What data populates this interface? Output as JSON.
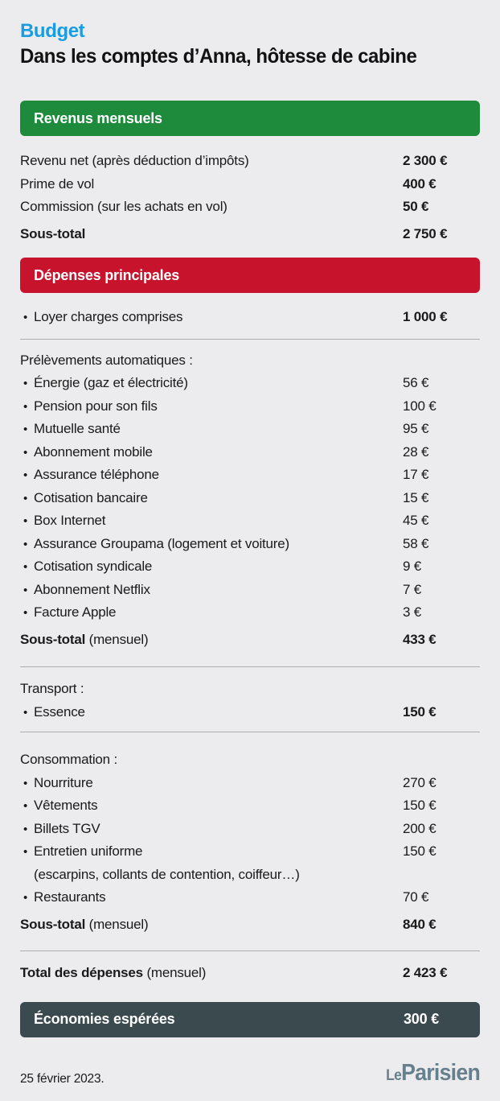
{
  "kicker": "Budget",
  "title": "Dans les comptes d’Anna, hôtesse de cabine",
  "revenus": {
    "banner": "Revenus mensuels",
    "rows": [
      {
        "label": "Revenu net (après déduction d’impôts)",
        "value": "2 300 €"
      },
      {
        "label": "Prime de vol",
        "value": "400 €"
      },
      {
        "label": "Commission (sur les achats en vol)",
        "value": "50 €"
      }
    ],
    "subtotal": {
      "label": "Sous-total",
      "value": "2 750 €"
    }
  },
  "depenses": {
    "banner": "Dépenses principales",
    "loyer": {
      "label": "Loyer charges comprises",
      "value": "1 000 €"
    },
    "prelevements": {
      "header": "Prélèvements automatiques :",
      "items": [
        {
          "label": "Énergie (gaz et électricité)",
          "value": "56 €"
        },
        {
          "label": "Pension pour son fils",
          "value": "100 €"
        },
        {
          "label": "Mutuelle santé",
          "value": "95 €"
        },
        {
          "label": "Abonnement mobile",
          "value": "28 €"
        },
        {
          "label": "Assurance téléphone",
          "value": "17 €"
        },
        {
          "label": "Cotisation bancaire",
          "value": "15 €"
        },
        {
          "label": "Box Internet",
          "value": "45 €"
        },
        {
          "label": "Assurance Groupama (logement et voiture)",
          "value": "58 €"
        },
        {
          "label": "Cotisation syndicale",
          "value": "9 €"
        },
        {
          "label": "Abonnement Netflix",
          "value": "7 €"
        },
        {
          "label": "Facture Apple",
          "value": "3 €"
        }
      ],
      "subtotal": {
        "label_bold": "Sous-total",
        "label_rest": " (mensuel)",
        "value": "433 €"
      }
    },
    "transport": {
      "header": "Transport :",
      "items": [
        {
          "label": "Essence",
          "value": "150 €"
        }
      ]
    },
    "consommation": {
      "header": "Consommation :",
      "items": [
        {
          "label": "Nourriture",
          "value": "270 €"
        },
        {
          "label": "Vêtements",
          "value": "150 €"
        },
        {
          "label": "Billets TGV",
          "value": "200 €"
        },
        {
          "label": "Entretien uniforme",
          "value": "150 €",
          "note": "(escarpins, collants de contention, coiffeur…)"
        },
        {
          "label": "Restaurants",
          "value": "70 €"
        }
      ],
      "subtotal": {
        "label_bold": "Sous-total",
        "label_rest": " (mensuel)",
        "value": "840 €"
      }
    },
    "total": {
      "label_bold": "Total des dépenses",
      "label_rest": " (mensuel)",
      "value": "2 423 €"
    }
  },
  "savings": {
    "label": "Économies espérées",
    "value": "300 €"
  },
  "footer": {
    "date": "25 février 2023.",
    "logo_le": "Le",
    "logo_parisien": "Parisien"
  },
  "colors": {
    "background": "#ececee",
    "text": "#1a1a1a",
    "kicker_blue": "#1a9ce0",
    "revenus_green": "#1e8a3c",
    "depenses_red": "#c8132d",
    "savings_dark": "#3b4a4f",
    "divider_gray": "#adadaf",
    "logo_slate": "#66808e"
  },
  "chart_data": {
    "type": "table",
    "kicker": "Budget",
    "title": "Dans les comptes d’Anna, hôtesse de cabine",
    "currency": "EUR",
    "sections": [
      {
        "name": "Revenus mensuels",
        "rows": [
          [
            "Revenu net (après déduction d’impôts)",
            2300
          ],
          [
            "Prime de vol",
            400
          ],
          [
            "Commission (sur les achats en vol)",
            50
          ]
        ],
        "subtotal": 2750
      },
      {
        "name": "Dépenses principales",
        "rows": [
          [
            "Loyer charges comprises",
            1000
          ]
        ],
        "groups": [
          {
            "name": "Prélèvements automatiques",
            "rows": [
              [
                "Énergie (gaz et électricité)",
                56
              ],
              [
                "Pension pour son fils",
                100
              ],
              [
                "Mutuelle santé",
                95
              ],
              [
                "Abonnement mobile",
                28
              ],
              [
                "Assurance téléphone",
                17
              ],
              [
                "Cotisation bancaire",
                15
              ],
              [
                "Box Internet",
                45
              ],
              [
                "Assurance Groupama (logement et voiture)",
                58
              ],
              [
                "Cotisation syndicale",
                9
              ],
              [
                "Abonnement Netflix",
                7
              ],
              [
                "Facture Apple",
                3
              ]
            ],
            "subtotal_mensuel": 433
          },
          {
            "name": "Transport",
            "rows": [
              [
                "Essence",
                150
              ]
            ]
          },
          {
            "name": "Consommation",
            "rows": [
              [
                "Nourriture",
                270
              ],
              [
                "Vêtements",
                150
              ],
              [
                "Billets TGV",
                200
              ],
              [
                "Entretien uniforme (escarpins, collants de contention, coiffeur…)",
                150
              ],
              [
                "Restaurants",
                70
              ]
            ],
            "subtotal_mensuel": 840
          }
        ],
        "total_mensuel": 2423
      },
      {
        "name": "Économies espérées",
        "value": 300
      }
    ],
    "footnote": "25 février 2023.",
    "source": "Le Parisien"
  }
}
